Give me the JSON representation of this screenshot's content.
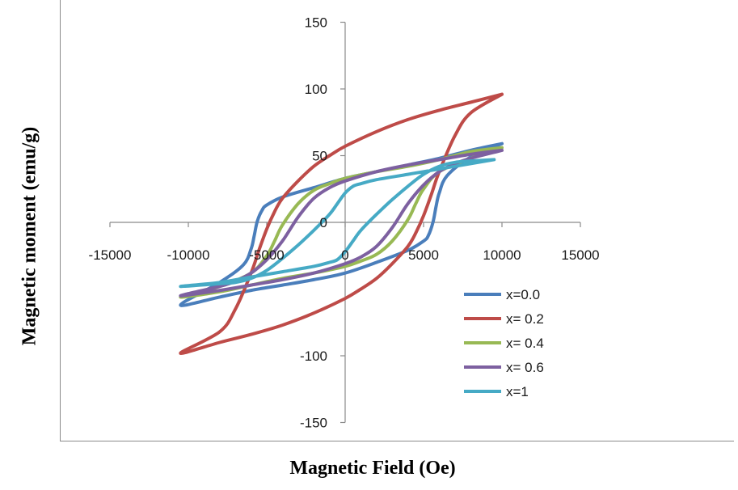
{
  "chart_data": {
    "type": "line",
    "xlabel": "Magnetic Field (Oe)",
    "ylabel": "Magnetic moment (emu/g)",
    "xlim": [
      -15000,
      15000
    ],
    "ylim": [
      -150,
      150
    ],
    "x_ticks": [
      -15000,
      -10000,
      -5000,
      0,
      5000,
      10000,
      15000
    ],
    "x_tick_labels": [
      "-15000",
      "-10000",
      "-5000",
      "0",
      "5000",
      "10000",
      "15000"
    ],
    "y_ticks": [
      150,
      100,
      50,
      0,
      -100,
      -150
    ],
    "y_tick_labels": [
      "150",
      "100",
      "50",
      "0",
      "-100",
      "-150"
    ],
    "grid": false,
    "legend_position": "right",
    "series": [
      {
        "name": "x=0.0",
        "color": "#4a7ebb",
        "x": [
          10000,
          8000,
          6000,
          4000,
          2000,
          0,
          -2000,
          -4000,
          -5000,
          -5300,
          -5600,
          -5800,
          -6000,
          -6500,
          -8000,
          -10500,
          -8000,
          -6000,
          -4000,
          -2000,
          0,
          2000,
          4000,
          5000,
          5300,
          5600,
          5800,
          6000,
          6500,
          8000,
          10000
        ],
        "y": [
          59,
          54,
          48,
          43,
          38,
          33,
          26,
          19,
          13,
          9,
          1,
          -10,
          -20,
          -32,
          -45,
          -62,
          -56,
          -51,
          -47,
          -43,
          -38,
          -30,
          -21,
          -14,
          -10,
          0,
          12,
          22,
          35,
          49,
          59
        ]
      },
      {
        "name": "x= 0.2",
        "color": "#be4b48",
        "x": [
          10000,
          8000,
          6000,
          4000,
          2000,
          0,
          -1000,
          -2000,
          -3000,
          -4000,
          -4500,
          -5000,
          -5500,
          -6000,
          -7000,
          -8000,
          -10500,
          -8000,
          -6000,
          -4000,
          -2000,
          0,
          1000,
          2000,
          3000,
          4000,
          4500,
          5000,
          5500,
          6000,
          7000,
          8000,
          10000
        ],
        "y": [
          96,
          90,
          84,
          77,
          68,
          57,
          50,
          42,
          31,
          18,
          8,
          -5,
          -21,
          -38,
          -65,
          -82,
          -98,
          -90,
          -84,
          -77,
          -68,
          -57,
          -50,
          -42,
          -31,
          -18,
          -8,
          5,
          21,
          38,
          65,
          82,
          96
        ]
      },
      {
        "name": "x= 0.4",
        "color": "#98b954",
        "x": [
          10000,
          8000,
          6000,
          4000,
          2000,
          0,
          -1000,
          -2000,
          -3000,
          -4000,
          -4500,
          -5000,
          -6000,
          -8000,
          -10500,
          -8000,
          -6000,
          -4000,
          -2000,
          0,
          1000,
          2000,
          3000,
          4000,
          4500,
          5000,
          6000,
          8000,
          10000
        ],
        "y": [
          56,
          53,
          47,
          42,
          38,
          33,
          29,
          24,
          14,
          -2,
          -14,
          -25,
          -38,
          -48,
          -56,
          -52,
          -47,
          -42,
          -38,
          -33,
          -29,
          -24,
          -14,
          2,
          14,
          25,
          38,
          48,
          56
        ]
      },
      {
        "name": "x= 0.6",
        "color": "#7d60a0",
        "x": [
          10000,
          8000,
          6000,
          4000,
          2000,
          0,
          -1000,
          -2000,
          -3000,
          -4000,
          -5000,
          -6000,
          -7000,
          -8000,
          -10500,
          -8000,
          -6000,
          -4000,
          -2000,
          0,
          1000,
          2000,
          3000,
          4000,
          5000,
          6000,
          7000,
          8000,
          10000
        ],
        "y": [
          54,
          51,
          47,
          43,
          38,
          31,
          26,
          18,
          4,
          -14,
          -28,
          -38,
          -44,
          -48,
          -55,
          -51,
          -47,
          -43,
          -38,
          -31,
          -26,
          -18,
          -4,
          14,
          28,
          38,
          44,
          48,
          54
        ]
      },
      {
        "name": "x=1",
        "color": "#46aac5",
        "x": [
          9500,
          8000,
          6000,
          4000,
          2000,
          1000,
          500,
          0,
          -500,
          -1000,
          -2000,
          -3000,
          -4000,
          -5000,
          -6000,
          -7000,
          -8000,
          -10500,
          -8000,
          -6000,
          -4000,
          -2000,
          -1000,
          -500,
          0,
          500,
          1000,
          2000,
          3000,
          4000,
          5000,
          6000,
          7000,
          8000,
          9500
        ],
        "y": [
          47,
          44,
          40,
          36,
          32,
          29,
          27,
          22,
          14,
          6,
          -6,
          -17,
          -27,
          -36,
          -42,
          -45,
          -46,
          -48,
          -45,
          -41,
          -37,
          -33,
          -30,
          -28,
          -22,
          -14,
          -6,
          6,
          17,
          27,
          36,
          42,
          45,
          46,
          47
        ]
      }
    ]
  }
}
